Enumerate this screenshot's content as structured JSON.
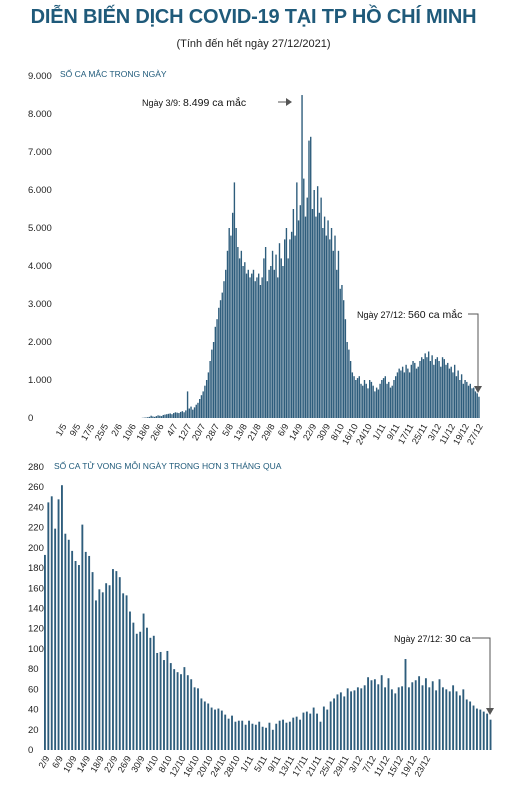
{
  "title": "DIỄN BIẾN DỊCH COVID-19 TẠI TP HỒ CHÍ MINH",
  "subtitle": "(Tính đến hết ngày 27/12/2021)",
  "colors": {
    "bar": "#2e5d7c",
    "title": "#1f5a7a",
    "arrow": "#555555"
  },
  "chart_data": [
    {
      "type": "bar",
      "ylabel": "SỐ CA MẮC TRONG NGÀY",
      "ylim": [
        0,
        9000
      ],
      "y_ticks": [
        "0",
        "1.000",
        "2.000",
        "3.000",
        "4.000",
        "5.000",
        "6.000",
        "7.000",
        "8.000",
        "9.000"
      ],
      "x_tick_labels": [
        "1/5",
        "9/5",
        "17/5",
        "25/5",
        "2/6",
        "10/6",
        "18/6",
        "26/6",
        "4/7",
        "12/7",
        "20/7",
        "28/7",
        "5/8",
        "13/8",
        "21/8",
        "29/8",
        "6/9",
        "14/9",
        "22/9",
        "30/9",
        "8/10",
        "16/10",
        "24/10",
        "1/11",
        "9/11",
        "17/11",
        "25/11",
        "3/12",
        "11/12",
        "19/12",
        "27/12"
      ],
      "start_date": "1/5",
      "values": [
        0,
        0,
        0,
        0,
        0,
        0,
        0,
        0,
        0,
        0,
        0,
        0,
        0,
        0,
        0,
        0,
        0,
        0,
        0,
        0,
        0,
        0,
        0,
        0,
        0,
        0,
        0,
        0,
        0,
        0,
        0,
        0,
        0,
        0,
        0,
        0,
        0,
        0,
        0,
        0,
        0,
        0,
        0,
        0,
        0,
        0,
        5,
        10,
        15,
        20,
        30,
        60,
        40,
        30,
        50,
        70,
        60,
        50,
        80,
        90,
        100,
        110,
        120,
        100,
        130,
        150,
        140,
        130,
        160,
        180,
        150,
        200,
        700,
        250,
        300,
        220,
        280,
        350,
        400,
        500,
        600,
        700,
        850,
        1000,
        1200,
        1500,
        1800,
        2000,
        2400,
        2600,
        2900,
        3100,
        3300,
        3600,
        3900,
        4400,
        5000,
        4800,
        5400,
        6200,
        5000,
        4500,
        4200,
        4400,
        4000,
        4100,
        3800,
        3900,
        3700,
        3800,
        3900,
        3600,
        3700,
        3800,
        3500,
        3700,
        4200,
        4500,
        3600,
        3900,
        4000,
        4400,
        3900,
        4300,
        3700,
        4600,
        4200,
        4000,
        4700,
        5000,
        4200,
        4700,
        4900,
        5500,
        4800,
        6200,
        5200,
        5600,
        8499,
        6300,
        5300,
        5800,
        7300,
        7400,
        5500,
        6000,
        5300,
        6100,
        5400,
        5800,
        5000,
        5300,
        4800,
        5200,
        4700,
        5000,
        4400,
        4800,
        3900,
        4400,
        3400,
        3500,
        3100,
        2600,
        2000,
        1800,
        1500,
        1200,
        1100,
        1000,
        1050,
        1100,
        900,
        850,
        1000,
        900,
        780,
        1000,
        950,
        850,
        700,
        800,
        750,
        900,
        1000,
        1050,
        1100,
        900,
        950,
        800,
        850,
        1000,
        1100,
        1200,
        1300,
        1250,
        1350,
        1200,
        1400,
        1300,
        1200,
        1400,
        1500,
        1450,
        1300,
        1350,
        1500,
        1600,
        1550,
        1700,
        1600,
        1750,
        1500,
        1650,
        1400,
        1550,
        1600,
        1500,
        1350,
        1600,
        1550,
        1400,
        1450,
        1300,
        1350,
        1200,
        1400,
        1100,
        1250,
        1000,
        1150,
        900,
        1000,
        950,
        850,
        900,
        780,
        800,
        700,
        650,
        560
      ]
    },
    {
      "type": "bar",
      "ylabel": "SỐ CA TỬ VONG MỖI NGÀY TRONG HƠN 3 THÁNG QUA",
      "ylim": [
        0,
        280
      ],
      "y_ticks": [
        "0",
        "20",
        "40",
        "60",
        "80",
        "100",
        "120",
        "140",
        "160",
        "180",
        "200",
        "220",
        "240",
        "260",
        "280"
      ],
      "x_tick_labels": [
        "2/9",
        "6/9",
        "10/9",
        "14/9",
        "18/9",
        "22/9",
        "26/9",
        "30/9",
        "4/10",
        "8/10",
        "12/10",
        "16/10",
        "20/10",
        "24/10",
        "28/10",
        "1/11",
        "5/11",
        "9/11",
        "13/11",
        "17/11",
        "21/11",
        "25/11",
        "29/11",
        "3/12",
        "7/12",
        "11/12",
        "15/12",
        "19/12",
        "23/12"
      ],
      "start_date": "2/9",
      "values": [
        193,
        245,
        251,
        219,
        248,
        262,
        214,
        208,
        197,
        187,
        183,
        223,
        196,
        192,
        176,
        148,
        159,
        156,
        165,
        163,
        179,
        177,
        171,
        155,
        153,
        137,
        126,
        115,
        117,
        135,
        121,
        111,
        113,
        96,
        97,
        89,
        98,
        86,
        80,
        77,
        75,
        82,
        74,
        70,
        62,
        61,
        51,
        48,
        46,
        42,
        40,
        41,
        39,
        35,
        31,
        34,
        28,
        29,
        29,
        25,
        29,
        26,
        25,
        28,
        23,
        22,
        27,
        20,
        26,
        29,
        30,
        27,
        28,
        32,
        33,
        30,
        37,
        38,
        36,
        42,
        36,
        28,
        43,
        40,
        48,
        51,
        55,
        57,
        53,
        61,
        58,
        59,
        62,
        61,
        64,
        72,
        69,
        70,
        65,
        74,
        62,
        71,
        60,
        56,
        62,
        63,
        90,
        62,
        67,
        69,
        73,
        64,
        71,
        62,
        68,
        59,
        70,
        62,
        60,
        58,
        64,
        58,
        54,
        60,
        50,
        48,
        44,
        41,
        40,
        38,
        36,
        30
      ]
    }
  ],
  "annotations": {
    "peak_prefix": "Ngày 3/9: ",
    "peak_value": "8.499 ca mắc",
    "last_cases_prefix": "Ngày 27/12: ",
    "last_cases_value": "560 ca mắc",
    "last_deaths_prefix": "Ngày 27/12: ",
    "last_deaths_value": "30 ca"
  }
}
